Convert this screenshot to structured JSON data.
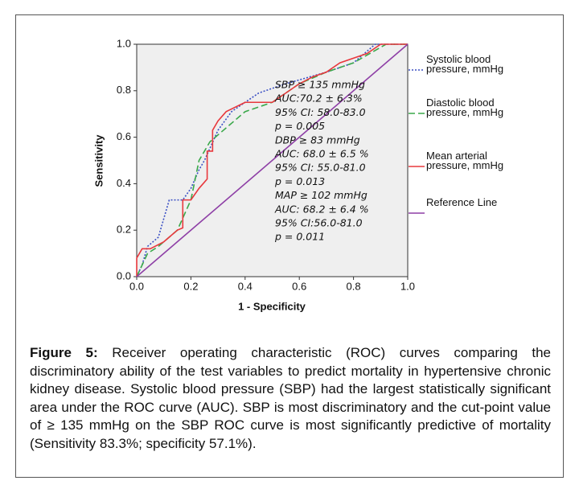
{
  "chart_data": {
    "type": "line",
    "xlabel": "1 - Specificity",
    "ylabel": "Sensitivity",
    "xlim": [
      0,
      1
    ],
    "ylim": [
      0,
      1
    ],
    "xticks": [
      {
        "value": 0,
        "label": "0.0"
      },
      0.2,
      0.4,
      0.6,
      0.8,
      {
        "value": 1,
        "label": "1.0"
      }
    ],
    "yticks": [
      {
        "value": 0,
        "label": "0.0"
      },
      0.2,
      0.4,
      0.6,
      0.8,
      {
        "value": 1,
        "label": "1.0"
      }
    ],
    "series": [
      {
        "name": "Systolic blood pressure, mmHg",
        "color": "#3a4fc4",
        "dash": "2,2",
        "x": [
          0,
          0.02,
          0.04,
          0.08,
          0.12,
          0.17,
          0.2,
          0.23,
          0.25,
          0.3,
          0.35,
          0.45,
          0.55,
          0.7,
          0.8,
          0.88,
          1
        ],
        "values": [
          0,
          0.05,
          0.13,
          0.17,
          0.33,
          0.33,
          0.38,
          0.46,
          0.5,
          0.63,
          0.71,
          0.79,
          0.83,
          0.88,
          0.92,
          1,
          1
        ]
      },
      {
        "name": "Diastolic blood pressure, mmHg",
        "color": "#3aa84a",
        "dash": "8,4",
        "x": [
          0,
          0.04,
          0.08,
          0.15,
          0.2,
          0.23,
          0.27,
          0.32,
          0.4,
          0.5,
          0.6,
          0.7,
          0.8,
          0.92,
          1
        ],
        "values": [
          0,
          0.1,
          0.13,
          0.2,
          0.33,
          0.5,
          0.58,
          0.63,
          0.71,
          0.75,
          0.83,
          0.88,
          0.92,
          1,
          1
        ]
      },
      {
        "name": "Mean arterial pressure, mmHg",
        "color": "#e8383d",
        "dash": "",
        "x": [
          0,
          0,
          0.02,
          0.05,
          0.1,
          0.15,
          0.17,
          0.17,
          0.2,
          0.23,
          0.26,
          0.26,
          0.28,
          0.28,
          0.3,
          0.33,
          0.4,
          0.5,
          0.6,
          0.65,
          0.7,
          0.75,
          0.85,
          0.9,
          1
        ],
        "values": [
          0,
          0.08,
          0.12,
          0.12,
          0.15,
          0.2,
          0.21,
          0.33,
          0.33,
          0.38,
          0.42,
          0.54,
          0.54,
          0.63,
          0.67,
          0.71,
          0.75,
          0.75,
          0.83,
          0.86,
          0.88,
          0.92,
          0.96,
          1,
          1
        ]
      },
      {
        "name": "Reference Line",
        "color": "#8e3fa6",
        "dash": "",
        "x": [
          0,
          1
        ],
        "values": [
          0,
          1
        ]
      }
    ],
    "annotations": [
      "SBP ≥ 135 mmHg",
      "AUC:70.2 ± 6.3%",
      "95% CI: 58.0-83.0",
      "p = 0.005",
      "DBP ≥ 83 mmHg",
      "AUC: 68.0 ± 6.5 %",
      "95% CI: 55.0-81.0",
      "p = 0.013",
      "MAP ≥ 102 mmHg",
      "AUC: 68.2 ± 6.4 %",
      "95% CI:56.0-81.0",
      "p = 0.011"
    ]
  },
  "caption": {
    "label": "Figure 5:",
    "text": "Receiver operating characteristic (ROC) curves comparing the discriminatory ability of the test variables to predict mortality in hypertensive chronic kidney disease. Systolic blood pressure (SBP) had the largest statistically significant area under the ROC curve (AUC). SBP is most discriminatory and the cut-point value of ≥ 135 mmHg on the SBP ROC curve is most significantly predictive of mortality (Sensitivity 83.3%; specificity 57.1%)."
  }
}
